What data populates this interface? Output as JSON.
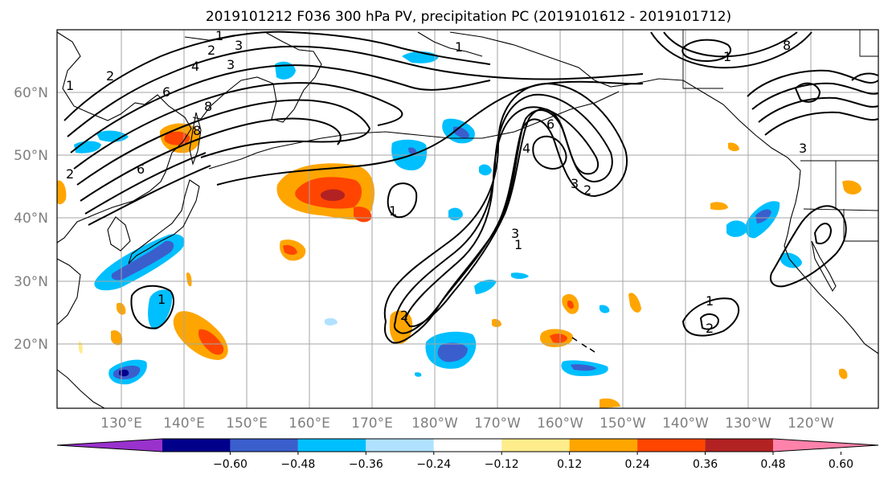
{
  "title": "2019101212 F036 300 hPa PV, precipitation PC (2019101612 - 2019101712)",
  "lon_labels": [
    "130°E",
    "140°E",
    "150°E",
    "160°E",
    "170°E",
    "180°W",
    "170°W",
    "160°W",
    "150°W",
    "140°W",
    "130°W",
    "120°W"
  ],
  "lat_labels": [
    "60°N",
    "50°N",
    "40°N",
    "30°N",
    "20°N"
  ],
  "colorbar": {
    "colors": [
      "#9932cc",
      "#00008b",
      "#3a5fcd",
      "#00bfff",
      "#b0e2ff",
      "#ffffff",
      "#ffec8b",
      "#ffa500",
      "#ff4500",
      "#b22222",
      "#ff82ab"
    ],
    "tick_labels": [
      "−0.60",
      "−0.48",
      "−0.36",
      "−0.24",
      "−0.12",
      "0.12",
      "0.24",
      "0.36",
      "0.48",
      "0.60"
    ]
  },
  "map_colors": {
    "coast": "#000000",
    "grid": "#a6a6a6",
    "contour": "#000000"
  },
  "pv_contour_labels": [
    "1",
    "2",
    "3",
    "4",
    "6",
    "8",
    "1",
    "2",
    "3",
    "6",
    "8",
    "1",
    "2",
    "1",
    "1",
    "2",
    "3",
    "1",
    "2",
    "3",
    "4",
    "6",
    "8",
    "1",
    "2",
    "1",
    "3"
  ]
}
